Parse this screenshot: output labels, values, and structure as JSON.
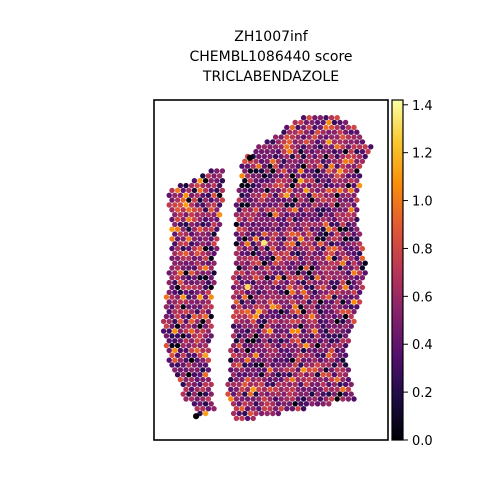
{
  "chart_data": {
    "type": "scatter",
    "title_lines": [
      "ZH1007inf",
      "CHEMBL1086440 score",
      "TRICLABENDAZOLE"
    ],
    "xlabel": "",
    "ylabel": "",
    "colormap": "inferno",
    "colorbar": {
      "range": [
        0.0,
        1.42
      ],
      "ticks": [
        {
          "value": 0.0,
          "label": "0.0"
        },
        {
          "value": 0.2,
          "label": "0.2"
        },
        {
          "value": 0.4,
          "label": "0.4"
        },
        {
          "value": 0.6,
          "label": "0.6"
        },
        {
          "value": 0.8,
          "label": "0.8"
        },
        {
          "value": 1.0,
          "label": "1.0"
        },
        {
          "value": 1.2,
          "label": "1.2"
        },
        {
          "value": 1.4,
          "label": "1.4"
        }
      ]
    },
    "grid": false,
    "axes_ticks": false,
    "tissue_regions": [
      {
        "name": "left-lobe",
        "outline": [
          [
            0.055,
            0.27
          ],
          [
            0.3,
            0.19
          ],
          [
            0.3,
            0.26
          ],
          [
            0.27,
            0.44
          ],
          [
            0.25,
            0.6
          ],
          [
            0.24,
            0.81
          ],
          [
            0.26,
            0.92
          ],
          [
            0.18,
            0.93
          ],
          [
            0.12,
            0.86
          ],
          [
            0.06,
            0.78
          ],
          [
            0.035,
            0.66
          ],
          [
            0.065,
            0.5
          ],
          [
            0.07,
            0.36
          ]
        ]
      },
      {
        "name": "right-lobe",
        "outline": [
          [
            0.5,
            0.11
          ],
          [
            0.66,
            0.04
          ],
          [
            0.78,
            0.05
          ],
          [
            0.88,
            0.09
          ],
          [
            0.94,
            0.15
          ],
          [
            0.89,
            0.2
          ],
          [
            0.87,
            0.34
          ],
          [
            0.91,
            0.5
          ],
          [
            0.87,
            0.62
          ],
          [
            0.82,
            0.74
          ],
          [
            0.86,
            0.88
          ],
          [
            0.7,
            0.9
          ],
          [
            0.55,
            0.92
          ],
          [
            0.36,
            0.95
          ],
          [
            0.31,
            0.88
          ],
          [
            0.33,
            0.7
          ],
          [
            0.34,
            0.5
          ],
          [
            0.35,
            0.3
          ],
          [
            0.38,
            0.17
          ]
        ]
      }
    ],
    "value_distribution": {
      "mean": 0.55,
      "sd": 0.2,
      "min": 0.0,
      "max": 1.42
    },
    "highlight_spots": [
      {
        "region": "right-lobe",
        "x": 0.47,
        "y": 0.42,
        "value": 1.35
      },
      {
        "region": "right-lobe",
        "x": 0.4,
        "y": 0.55,
        "value": 1.3
      },
      {
        "region": "right-lobe",
        "x": 0.41,
        "y": 0.17,
        "value": 0.0
      },
      {
        "region": "left-lobe",
        "x": 0.18,
        "y": 0.93,
        "value": 0.0
      }
    ]
  }
}
